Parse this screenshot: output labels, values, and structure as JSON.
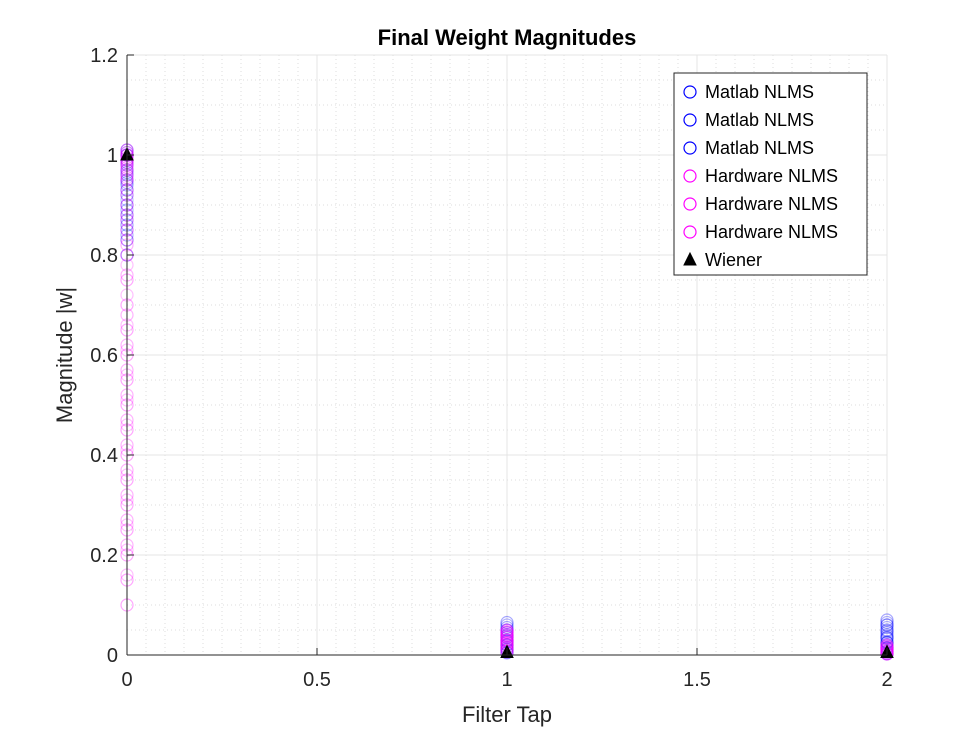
{
  "chart_data": {
    "type": "scatter",
    "title": "Final Weight Magnitudes",
    "xlabel": "Filter Tap",
    "ylabel": "Magnitude |w|",
    "xlim": [
      0,
      2
    ],
    "ylim": [
      0,
      1.2
    ],
    "xticks": [
      0,
      0.5,
      1,
      1.5,
      2
    ],
    "xtick_labels": [
      "0",
      "0.5",
      "1",
      "1.5",
      "2"
    ],
    "yticks": [
      0,
      0.2,
      0.4,
      0.6,
      0.8,
      1.0,
      1.2
    ],
    "ytick_labels": [
      "0",
      "0.2",
      "0.4",
      "0.6",
      "0.8",
      "1",
      "1.2"
    ],
    "grid": true,
    "minor_grid": true,
    "legend_position": "top-right",
    "series": [
      {
        "name": "Matlab NLMS",
        "marker": "circle",
        "color": "#0000ff",
        "x": [
          0,
          0,
          0,
          0,
          0,
          0,
          0,
          0,
          0,
          0,
          0,
          1,
          1,
          1,
          1,
          1,
          1,
          1,
          1,
          2,
          2,
          2,
          2,
          2,
          2,
          2,
          2,
          2,
          2
        ],
        "y": [
          1.01,
          1.0,
          0.99,
          0.97,
          0.95,
          0.93,
          0.9,
          0.88,
          0.86,
          0.83,
          0.8,
          0.065,
          0.055,
          0.045,
          0.035,
          0.028,
          0.02,
          0.012,
          0.005,
          0.07,
          0.06,
          0.05,
          0.04,
          0.033,
          0.026,
          0.02,
          0.014,
          0.008,
          0.003
        ]
      },
      {
        "name": "Matlab NLMS",
        "marker": "circle",
        "color": "#0000ff",
        "x": [
          0,
          0,
          0,
          0,
          0,
          0,
          0,
          0,
          1,
          1,
          1,
          1,
          1,
          1,
          2,
          2,
          2,
          2,
          2,
          2,
          2
        ],
        "y": [
          1.0,
          0.98,
          0.96,
          0.94,
          0.92,
          0.89,
          0.87,
          0.84,
          0.06,
          0.05,
          0.04,
          0.03,
          0.02,
          0.01,
          0.065,
          0.055,
          0.045,
          0.035,
          0.025,
          0.015,
          0.006
        ]
      },
      {
        "name": "Matlab NLMS",
        "marker": "circle",
        "color": "#0000ff",
        "x": [
          0,
          0,
          0,
          0,
          0,
          0,
          1,
          1,
          1,
          1,
          1,
          2,
          2,
          2,
          2,
          2,
          2
        ],
        "y": [
          1.005,
          0.985,
          0.965,
          0.945,
          0.91,
          0.85,
          0.05,
          0.038,
          0.026,
          0.015,
          0.004,
          0.06,
          0.048,
          0.036,
          0.024,
          0.012,
          0.002
        ]
      },
      {
        "name": "Hardware NLMS",
        "marker": "circle",
        "color": "#ff00ff",
        "x": [
          0,
          0,
          0,
          0,
          0,
          0,
          0,
          0,
          0,
          0,
          0,
          0,
          0,
          0,
          0,
          0,
          0,
          0,
          0,
          0,
          0,
          0,
          0,
          1,
          1,
          1,
          1,
          1,
          1,
          1,
          1,
          2,
          2,
          2,
          2,
          2
        ],
        "y": [
          1.01,
          1.0,
          0.99,
          0.98,
          0.97,
          0.95,
          0.9,
          0.85,
          0.8,
          0.75,
          0.7,
          0.65,
          0.6,
          0.55,
          0.5,
          0.45,
          0.4,
          0.35,
          0.3,
          0.25,
          0.2,
          0.15,
          0.1,
          0.05,
          0.045,
          0.04,
          0.035,
          0.03,
          0.025,
          0.02,
          0.01,
          0.02,
          0.015,
          0.01,
          0.006,
          0.002
        ]
      },
      {
        "name": "Hardware NLMS",
        "marker": "circle",
        "color": "#ff00ff",
        "x": [
          0,
          0,
          0,
          0,
          0,
          0,
          0,
          0,
          0,
          0,
          0,
          0,
          0,
          0,
          0,
          0,
          0,
          0,
          1,
          1,
          1,
          1,
          1,
          1,
          1,
          2,
          2,
          2,
          2
        ],
        "y": [
          1.005,
          0.995,
          0.985,
          0.96,
          0.93,
          0.88,
          0.82,
          0.76,
          0.68,
          0.62,
          0.57,
          0.52,
          0.47,
          0.42,
          0.37,
          0.32,
          0.27,
          0.22,
          0.048,
          0.042,
          0.036,
          0.03,
          0.022,
          0.015,
          0.008,
          0.018,
          0.012,
          0.007,
          0.003
        ]
      },
      {
        "name": "Hardware NLMS",
        "marker": "circle",
        "color": "#ff00ff",
        "x": [
          0,
          0,
          0,
          0,
          0,
          0,
          0,
          0,
          0,
          0,
          0,
          0,
          0,
          0,
          0,
          0,
          0,
          0,
          0,
          0,
          1,
          1,
          1,
          1,
          1,
          1,
          2,
          2,
          2,
          2
        ],
        "y": [
          1.0,
          0.99,
          0.975,
          0.955,
          0.92,
          0.87,
          0.83,
          0.78,
          0.72,
          0.66,
          0.61,
          0.56,
          0.51,
          0.46,
          0.41,
          0.36,
          0.31,
          0.26,
          0.21,
          0.16,
          0.046,
          0.038,
          0.03,
          0.024,
          0.016,
          0.006,
          0.016,
          0.011,
          0.006,
          0.002
        ]
      },
      {
        "name": "Wiener",
        "marker": "triangle",
        "color": "#000000",
        "x": [
          0,
          1,
          2
        ],
        "y": [
          1.0,
          0.005,
          0.005
        ]
      }
    ]
  }
}
